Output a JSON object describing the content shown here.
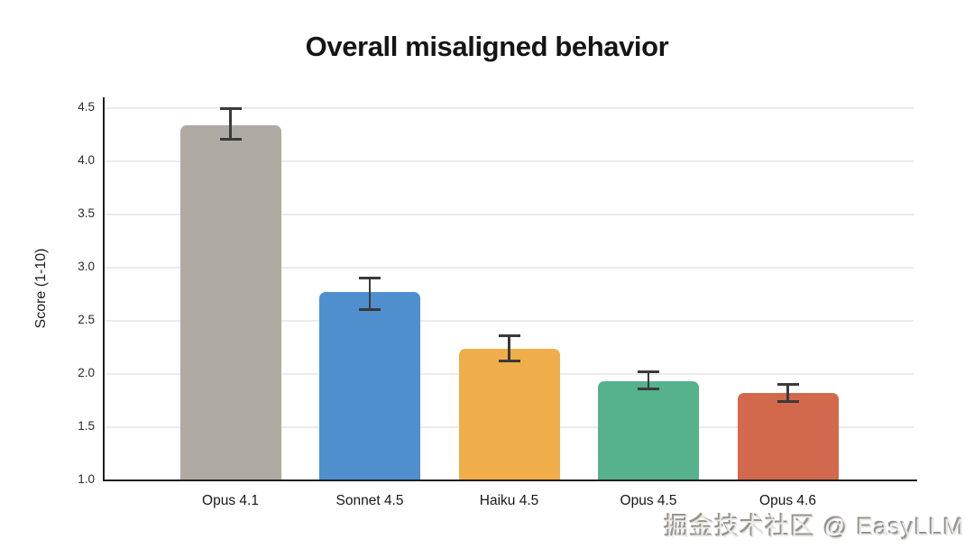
{
  "watermark": {
    "text": "掘金技术社区 @ EasyLLM"
  },
  "chart_data": {
    "type": "bar",
    "title": "Overall misaligned behavior",
    "xlabel": "",
    "ylabel": "Score (1-10)",
    "categories": [
      "Opus 4.1",
      "Sonnet 4.5",
      "Haiku 4.5",
      "Opus 4.5",
      "Opus 4.6"
    ],
    "values": [
      4.33,
      2.76,
      2.23,
      1.92,
      1.81
    ],
    "error_low": [
      4.2,
      2.6,
      2.12,
      1.86,
      1.74
    ],
    "error_high": [
      4.48,
      2.89,
      2.35,
      2.01,
      1.89
    ],
    "ylim": [
      1.0,
      4.5
    ],
    "yticks": [
      "1.0",
      "1.5",
      "2.0",
      "2.5",
      "3.0",
      "3.5",
      "4.0",
      "4.5"
    ],
    "grid": "horizontal",
    "legend": "none",
    "bar_colors": [
      "#b0aba2",
      "#4f8fcd",
      "#f0ae4a",
      "#56b18d",
      "#d2694c"
    ],
    "error_color": "#3a3a3a",
    "axis_color": "#1e1e1e",
    "grid_color": "#ebebeb",
    "background_color": "#ffffff"
  }
}
